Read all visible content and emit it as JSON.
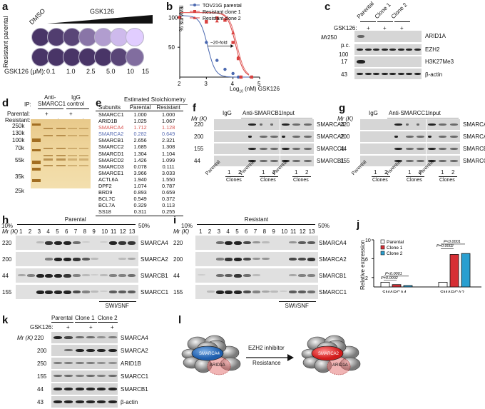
{
  "panels": {
    "a": {
      "label": "a",
      "row_label": "Resistant parental",
      "dmso_label": "DMSO",
      "gradient_label": "GSK126",
      "dose_axis_label": "GSK126 (μM):",
      "doses": [
        "0.1",
        "1.0",
        "2.5",
        "5.0",
        "10",
        "15"
      ],
      "parental_intensity": [
        0.95,
        0.9,
        0.85,
        0.55,
        0.3,
        0.12,
        0.0
      ],
      "resistant_intensity": [
        0.95,
        0.95,
        0.95,
        0.95,
        0.95,
        0.85,
        0.6
      ]
    },
    "b": {
      "label": "b",
      "annotation": "~20-fold"
    },
    "c": {
      "label": "c",
      "columns": [
        "Parental",
        "Clone 1",
        "Clone 2"
      ],
      "treatment_label": "GSK126:",
      "plus": "+",
      "mr_label": "Mr (K)",
      "pc_label": "p.c.",
      "rows": [
        {
          "mw": "250",
          "protein": "ARID1A"
        },
        {
          "mw": "100",
          "protein": "EZH2"
        },
        {
          "mw": "17",
          "protein": "H3K27Me3"
        },
        {
          "mw": "43",
          "protein": "β-actin"
        }
      ]
    },
    "d": {
      "label": "d",
      "ip_label": "IP:",
      "group1": "Anti-SMARCC1",
      "group1_line1": "Anti-",
      "group1_line2": "SMARCC1",
      "group2_line1": "IgG",
      "group2_line2": "control",
      "parental_label": "Parental:",
      "resistant_label": "Resistant:",
      "plus": "+",
      "markers": [
        "250k",
        "130k",
        "100k",
        "70k",
        "55k",
        "35k",
        "25k"
      ]
    },
    "e": {
      "label": "e",
      "title": "Estimated Stoichiometry",
      "headers": [
        "Subunits",
        "Parental",
        "Resistant"
      ],
      "rows": [
        {
          "subunit": "SMARCC1",
          "parental": "1.000",
          "resistant": "1.000",
          "color": "#111111"
        },
        {
          "subunit": "ARID1B",
          "parental": "1.025",
          "resistant": "1.067",
          "color": "#111111"
        },
        {
          "subunit": "SMARCA4",
          "parental": "1.712",
          "resistant": "1.128",
          "color": "#d9534f"
        },
        {
          "subunit": "SMARCA2",
          "parental": "0.282",
          "resistant": "0.649",
          "color": "#5b6fb5"
        },
        {
          "subunit": "SMARCB1",
          "parental": "2.656",
          "resistant": "2.321",
          "color": "#111111"
        },
        {
          "subunit": "SMARCC2",
          "parental": "1.685",
          "resistant": "1.308",
          "color": "#111111"
        },
        {
          "subunit": "SMARCD1",
          "parental": "1.304",
          "resistant": "1.104",
          "color": "#111111"
        },
        {
          "subunit": "SMARCD2",
          "parental": "1.426",
          "resistant": "1.099",
          "color": "#111111"
        },
        {
          "subunit": "SMARCD3",
          "parental": "0.078",
          "resistant": "0.111",
          "color": "#111111"
        },
        {
          "subunit": "SMARCE1",
          "parental": "3.966",
          "resistant": "3.033",
          "color": "#111111"
        },
        {
          "subunit": "ACTL6A",
          "parental": "1.940",
          "resistant": "1.550",
          "color": "#111111"
        },
        {
          "subunit": "DPF2",
          "parental": "1.074",
          "resistant": "0.787",
          "color": "#111111"
        },
        {
          "subunit": "BRD9",
          "parental": "0.893",
          "resistant": "0.659",
          "color": "#111111"
        },
        {
          "subunit": "BCL7C",
          "parental": "0.549",
          "resistant": "0.372",
          "color": "#111111"
        },
        {
          "subunit": "BCL7A",
          "parental": "0.329",
          "resistant": "0.113",
          "color": "#111111"
        },
        {
          "subunit": "SS18",
          "parental": "0.311",
          "resistant": "0.255",
          "color": "#111111"
        }
      ]
    },
    "f": {
      "label": "f",
      "mr_label": "Mr (K)",
      "groups": [
        "IgG",
        "Anti-SMARCB1",
        "Input"
      ],
      "lane_labels": {
        "parental": "Parental",
        "clones": "Clones",
        "one": "1",
        "two": "2"
      },
      "rows": [
        {
          "mw": "220",
          "protein": "SMARCA4"
        },
        {
          "mw": "200",
          "protein": "SMARCA2"
        },
        {
          "mw": "155",
          "protein": "SMARCC1"
        },
        {
          "mw": "44",
          "protein": "SMARCB1"
        }
      ]
    },
    "g": {
      "label": "g",
      "mr_label": "Mr (K)",
      "groups": [
        "IgG",
        "Anti-SMARCC1",
        "Input"
      ],
      "lane_labels": {
        "parental": "Parental",
        "clones": "Clones",
        "one": "1",
        "two": "2"
      },
      "rows": [
        {
          "mw": "220",
          "protein": "SMARCA4"
        },
        {
          "mw": "200",
          "protein": "SMARCA2"
        },
        {
          "mw": "44",
          "protein": "SMARCB1"
        },
        {
          "mw": "155",
          "protein": "SMARCC1"
        }
      ]
    },
    "h": {
      "label": "h",
      "title": "Parental",
      "left_pct": "10%",
      "right_pct": "50%",
      "mr_label": "Mr (K)",
      "fractions": [
        "1",
        "2",
        "3",
        "4",
        "5",
        "6",
        "7",
        "8",
        "9",
        "10",
        "11",
        "12",
        "13"
      ],
      "swisnf_label": "SWI/SNF",
      "rows": [
        {
          "mw": "220",
          "protein": "SMARCA4"
        },
        {
          "mw": "200",
          "protein": "SMARCA2"
        },
        {
          "mw": "44",
          "protein": "SMARCB1"
        },
        {
          "mw": "155",
          "protein": "SMARCC1"
        }
      ]
    },
    "i": {
      "label": "i",
      "title": "Resistant",
      "left_pct": "10%",
      "right_pct": "50%",
      "mr_label": "Mr (K)",
      "fractions": [
        "1",
        "2",
        "3",
        "4",
        "5",
        "6",
        "7",
        "8",
        "9",
        "10",
        "11",
        "12",
        "13"
      ],
      "swisnf_label": "SWI/SNF",
      "rows": [
        {
          "mw": "220",
          "protein": "SMARCA4"
        },
        {
          "mw": "200",
          "protein": "SMARCA2"
        },
        {
          "mw": "44",
          "protein": "SMARCB1"
        },
        {
          "mw": "155",
          "protein": "SMARCC1"
        }
      ]
    },
    "j": {
      "label": "j",
      "p1": "P<0.0001",
      "p2": "P=0.0002",
      "p3": "P<0.0001",
      "p4": "P=0.0002"
    },
    "k": {
      "label": "k",
      "columns": [
        "Parental",
        "Clone 1",
        "Clone 2"
      ],
      "treatment_label": "GSK126:",
      "plus": "+",
      "mr_label": "Mr (K)",
      "rows": [
        {
          "mw": "220",
          "protein": "SMARCA4"
        },
        {
          "mw": "200",
          "protein": "SMARCA2"
        },
        {
          "mw": "250",
          "protein": "ARID1B"
        },
        {
          "mw": "155",
          "protein": "SMARCC1"
        },
        {
          "mw": "44",
          "protein": "SMARCB1"
        },
        {
          "mw": "43",
          "protein": "β-actin"
        }
      ]
    },
    "l": {
      "label": "l",
      "left_complex_main": "SMARCA4",
      "left_complex_sub": "ARID1A",
      "right_complex_main": "SMARCA2",
      "right_complex_sub": "ARID1A",
      "arrow_top": "EZH2 inhibitor",
      "arrow_bottom": "Resistance"
    }
  },
  "chart_data": [
    {
      "panel": "b",
      "type": "scatter",
      "title": "",
      "xlabel": "Log10 (nM) GSK126",
      "ylabel": "% survival",
      "xlim": [
        2,
        5
      ],
      "ylim": [
        0,
        120
      ],
      "xticks": [
        2,
        3,
        4,
        5
      ],
      "yticks": [
        50,
        100
      ],
      "legend_position": "top-left",
      "series": [
        {
          "name": "TOV21G parental",
          "color": "#4a68b0",
          "marker": "circle",
          "x": [
            2.0,
            3.0,
            3.4,
            3.7,
            4.0,
            4.2
          ],
          "y": [
            100,
            58,
            28,
            13,
            6,
            0
          ]
        },
        {
          "name": "Resistant clone 1",
          "color": "#d9413f",
          "marker": "square",
          "x": [
            2.0,
            3.0,
            3.4,
            3.7,
            4.0,
            4.2,
            4.3,
            4.7
          ],
          "y": [
            100,
            93,
            99,
            96,
            58,
            31,
            0,
            0
          ]
        },
        {
          "name": "Resistant clone 2",
          "color": "#d9413f",
          "marker": "triangle",
          "x": [
            2.0,
            3.0,
            3.4,
            3.7,
            4.0,
            4.2,
            4.3,
            4.7
          ],
          "y": [
            100,
            92,
            94,
            95,
            74,
            34,
            0,
            0
          ]
        }
      ],
      "annotations": [
        "~20-fold"
      ]
    },
    {
      "panel": "j",
      "type": "bar",
      "title": "",
      "xlabel": "",
      "ylabel": "Relative expression",
      "ylim": [
        0,
        10
      ],
      "yticks": [
        2,
        6,
        10
      ],
      "categories": [
        "SMARCA4",
        "SMARCA2"
      ],
      "legend_position": "top-left",
      "series": [
        {
          "name": "Parental",
          "color": "#ffffff",
          "values": [
            1.0,
            1.0
          ]
        },
        {
          "name": "Clone 1",
          "color": "#d62f35",
          "values": [
            0.5,
            6.9
          ]
        },
        {
          "name": "Clone 2",
          "color": "#2a9fd0",
          "values": [
            0.3,
            7.1
          ]
        }
      ],
      "annotations": [
        "P<0.0001",
        "P=0.0002",
        "P<0.0001",
        "P=0.0002"
      ]
    }
  ]
}
